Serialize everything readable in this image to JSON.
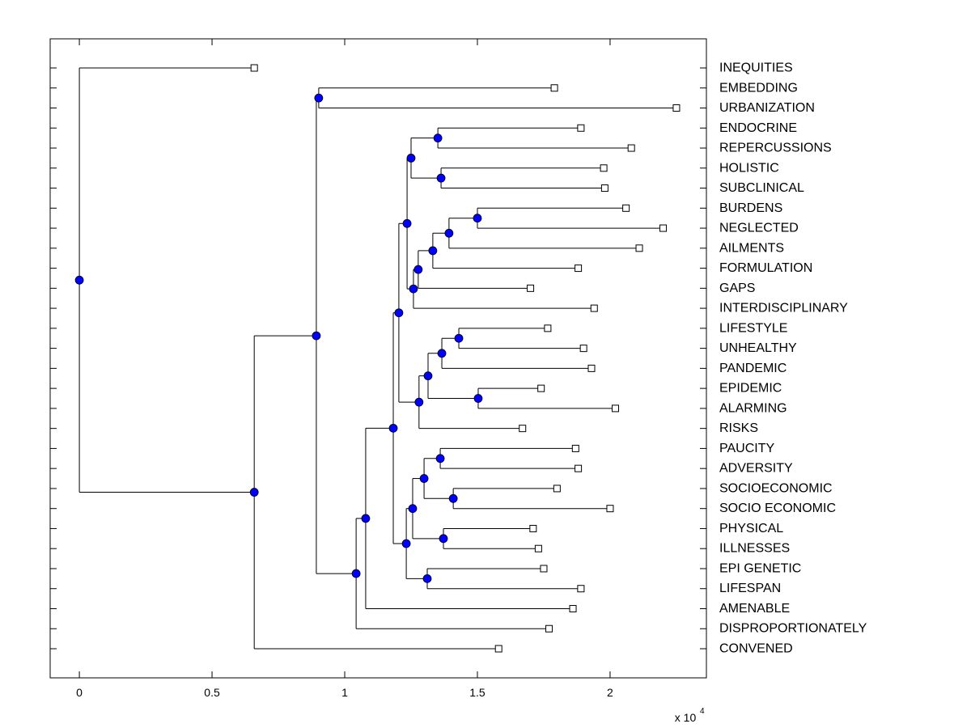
{
  "chart_data": {
    "type": "dendrogram",
    "title": "",
    "xlabel": "",
    "ylabel": "",
    "x_multiplier": {
      "base": "x 10",
      "exponent": "4"
    },
    "xlim": [
      -0.11,
      2.363
    ],
    "xticks": [
      0,
      0.5,
      1,
      1.5,
      2
    ],
    "xtick_labels": [
      "0",
      "0.5",
      "1",
      "1.5",
      "2"
    ],
    "grid": false,
    "colors": {
      "node": "#0000ff",
      "line": "#000000",
      "leaf_marker": "#ffffff"
    },
    "leaves": [
      {
        "label": "INEQUITIES",
        "value": 0.659
      },
      {
        "label": "EMBEDDING",
        "value": 1.79
      },
      {
        "label": "URBANIZATION",
        "value": 2.25
      },
      {
        "label": "ENDOCRINE",
        "value": 1.89
      },
      {
        "label": "REPERCUSSIONS",
        "value": 2.08
      },
      {
        "label": "HOLISTIC",
        "value": 1.976
      },
      {
        "label": "SUBCLINICAL",
        "value": 1.98
      },
      {
        "label": "BURDENS",
        "value": 2.06
      },
      {
        "label": "NEGLECTED",
        "value": 2.2
      },
      {
        "label": "AILMENTS",
        "value": 2.11
      },
      {
        "label": "FORMULATION",
        "value": 1.88
      },
      {
        "label": "GAPS",
        "value": 1.7
      },
      {
        "label": "INTERDISCIPLINARY",
        "value": 1.94
      },
      {
        "label": "LIFESTYLE",
        "value": 1.765
      },
      {
        "label": "UNHEALTHY",
        "value": 1.9
      },
      {
        "label": "PANDEMIC",
        "value": 1.93
      },
      {
        "label": "EPIDEMIC",
        "value": 1.74
      },
      {
        "label": "ALARMING",
        "value": 2.02
      },
      {
        "label": "RISKS",
        "value": 1.67
      },
      {
        "label": "PAUCITY",
        "value": 1.87
      },
      {
        "label": "ADVERSITY",
        "value": 1.88
      },
      {
        "label": "SOCIOECONOMIC",
        "value": 1.8
      },
      {
        "label": "SOCIO ECONOMIC",
        "value": 2.0
      },
      {
        "label": "PHYSICAL",
        "value": 1.71
      },
      {
        "label": "ILLNESSES",
        "value": 1.73
      },
      {
        "label": "EPI GENETIC",
        "value": 1.75
      },
      {
        "label": "LIFESPAN",
        "value": 1.89
      },
      {
        "label": "AMENABLE",
        "value": 1.86
      },
      {
        "label": "DISPROPORTIONATELY",
        "value": 1.77
      },
      {
        "label": "CONVENED",
        "value": 1.58
      }
    ],
    "tree": {
      "h": 0,
      "c": [
        0,
        {
          "h": 0.659,
          "c": [
            {
              "h": 0.893,
              "c": [
                {
                  "h": 0.902,
                  "c": [
                    1,
                    2
                  ]
                },
                {
                  "h": 1.043,
                  "c": [
                    {
                      "h": 1.079,
                      "c": [
                        {
                          "h": 1.183,
                          "c": [
                            {
                              "h": 1.204,
                              "c": [
                                {
                                  "h": 1.235,
                                  "c": [
                                    {
                                      "h": 1.25,
                                      "c": [
                                        {
                                          "h": 1.351,
                                          "c": [
                                            3,
                                            4
                                          ]
                                        },
                                        {
                                          "h": 1.363,
                                          "c": [
                                            5,
                                            6
                                          ]
                                        }
                                      ]
                                    },
                                    {
                                      "h": 1.259,
                                      "c": [
                                        {
                                          "h": 1.277,
                                          "c": [
                                            {
                                              "h": 1.332,
                                              "c": [
                                                {
                                                  "h": 1.393,
                                                  "c": [
                                                    {
                                                      "h": 1.5,
                                                      "c": [
                                                        7,
                                                        8
                                                      ]
                                                    },
                                                    9
                                                  ]
                                                },
                                                10
                                              ]
                                            },
                                            11
                                          ]
                                        },
                                        12
                                      ]
                                    }
                                  ]
                                },
                                {
                                  "h": 1.28,
                                  "c": [
                                    {
                                      "h": 1.314,
                                      "c": [
                                        {
                                          "h": 1.366,
                                          "c": [
                                            {
                                              "h": 1.43,
                                              "c": [
                                                13,
                                                14
                                              ]
                                            },
                                            15
                                          ]
                                        },
                                        {
                                          "h": 1.503,
                                          "c": [
                                            16,
                                            17
                                          ]
                                        }
                                      ]
                                    },
                                    18
                                  ]
                                }
                              ]
                            },
                            {
                              "h": 1.232,
                              "c": [
                                {
                                  "h": 1.256,
                                  "c": [
                                    {
                                      "h": 1.299,
                                      "c": [
                                        {
                                          "h": 1.36,
                                          "c": [
                                            19,
                                            20
                                          ]
                                        },
                                        {
                                          "h": 1.409,
                                          "c": [
                                            21,
                                            22
                                          ]
                                        }
                                      ]
                                    },
                                    {
                                      "h": 1.372,
                                      "c": [
                                        23,
                                        24
                                      ]
                                    }
                                  ]
                                },
                                {
                                  "h": 1.311,
                                  "c": [
                                    25,
                                    26
                                  ]
                                }
                              ]
                            }
                          ]
                        },
                        27
                      ]
                    },
                    28
                  ]
                }
              ]
            },
            29
          ]
        }
      ]
    }
  }
}
